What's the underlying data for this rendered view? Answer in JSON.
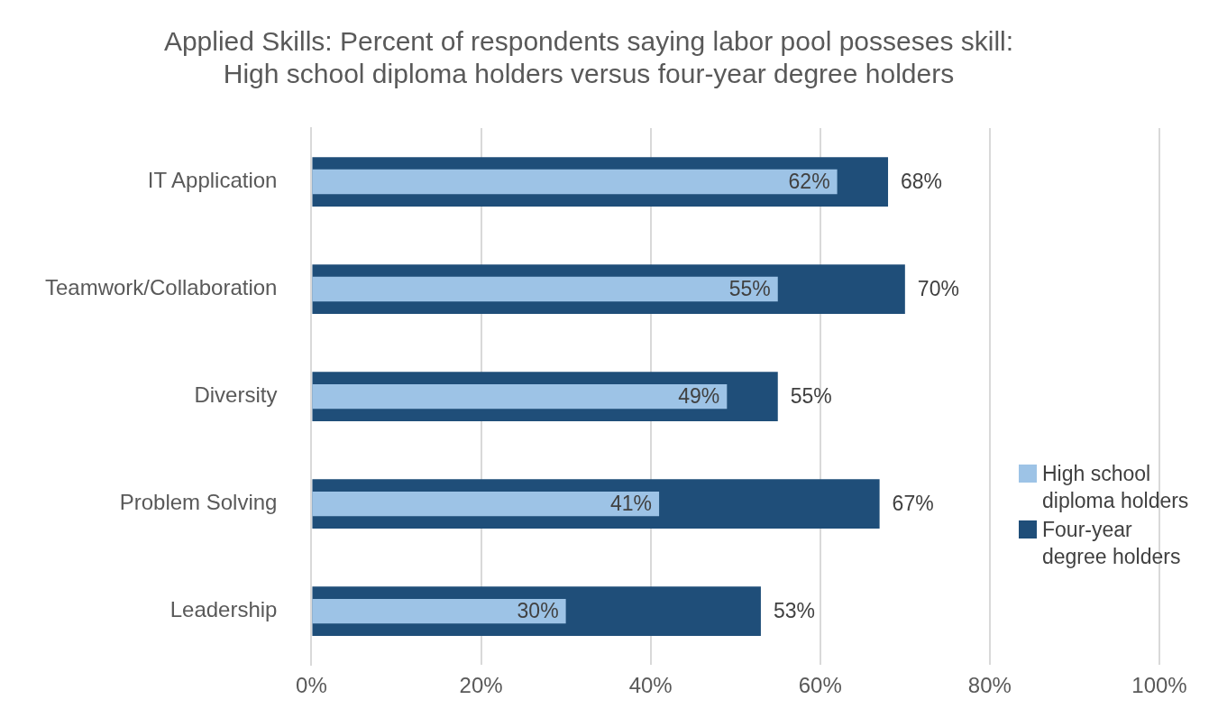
{
  "chart_data": {
    "type": "bar",
    "orientation": "horizontal",
    "title": "Applied Skills: Percent of respondents saying labor pool posseses skill:\nHigh school diploma holders versus four-year degree holders",
    "categories": [
      "IT Application",
      "Teamwork/Collaboration",
      "Diversity",
      "Problem Solving",
      "Leadership"
    ],
    "series": [
      {
        "name": "High school diploma holders",
        "color": "#9dc3e6",
        "values": [
          62,
          55,
          49,
          41,
          30
        ],
        "value_labels": [
          "62%",
          "55%",
          "49%",
          "41%",
          "30%"
        ]
      },
      {
        "name": "Four-year degree holders",
        "color": "#1f4e79",
        "values": [
          68,
          70,
          55,
          67,
          53
        ],
        "value_labels": [
          "68%",
          "70%",
          "55%",
          "67%",
          "53%"
        ]
      }
    ],
    "xlim": [
      0,
      100
    ],
    "xticks": [
      {
        "value": 0,
        "label": "0%"
      },
      {
        "value": 20,
        "label": "20%"
      },
      {
        "value": 40,
        "label": "40%"
      },
      {
        "value": 60,
        "label": "60%"
      },
      {
        "value": 80,
        "label": "80%"
      },
      {
        "value": 100,
        "label": "100%"
      }
    ],
    "grid": "x",
    "legend": "right"
  }
}
